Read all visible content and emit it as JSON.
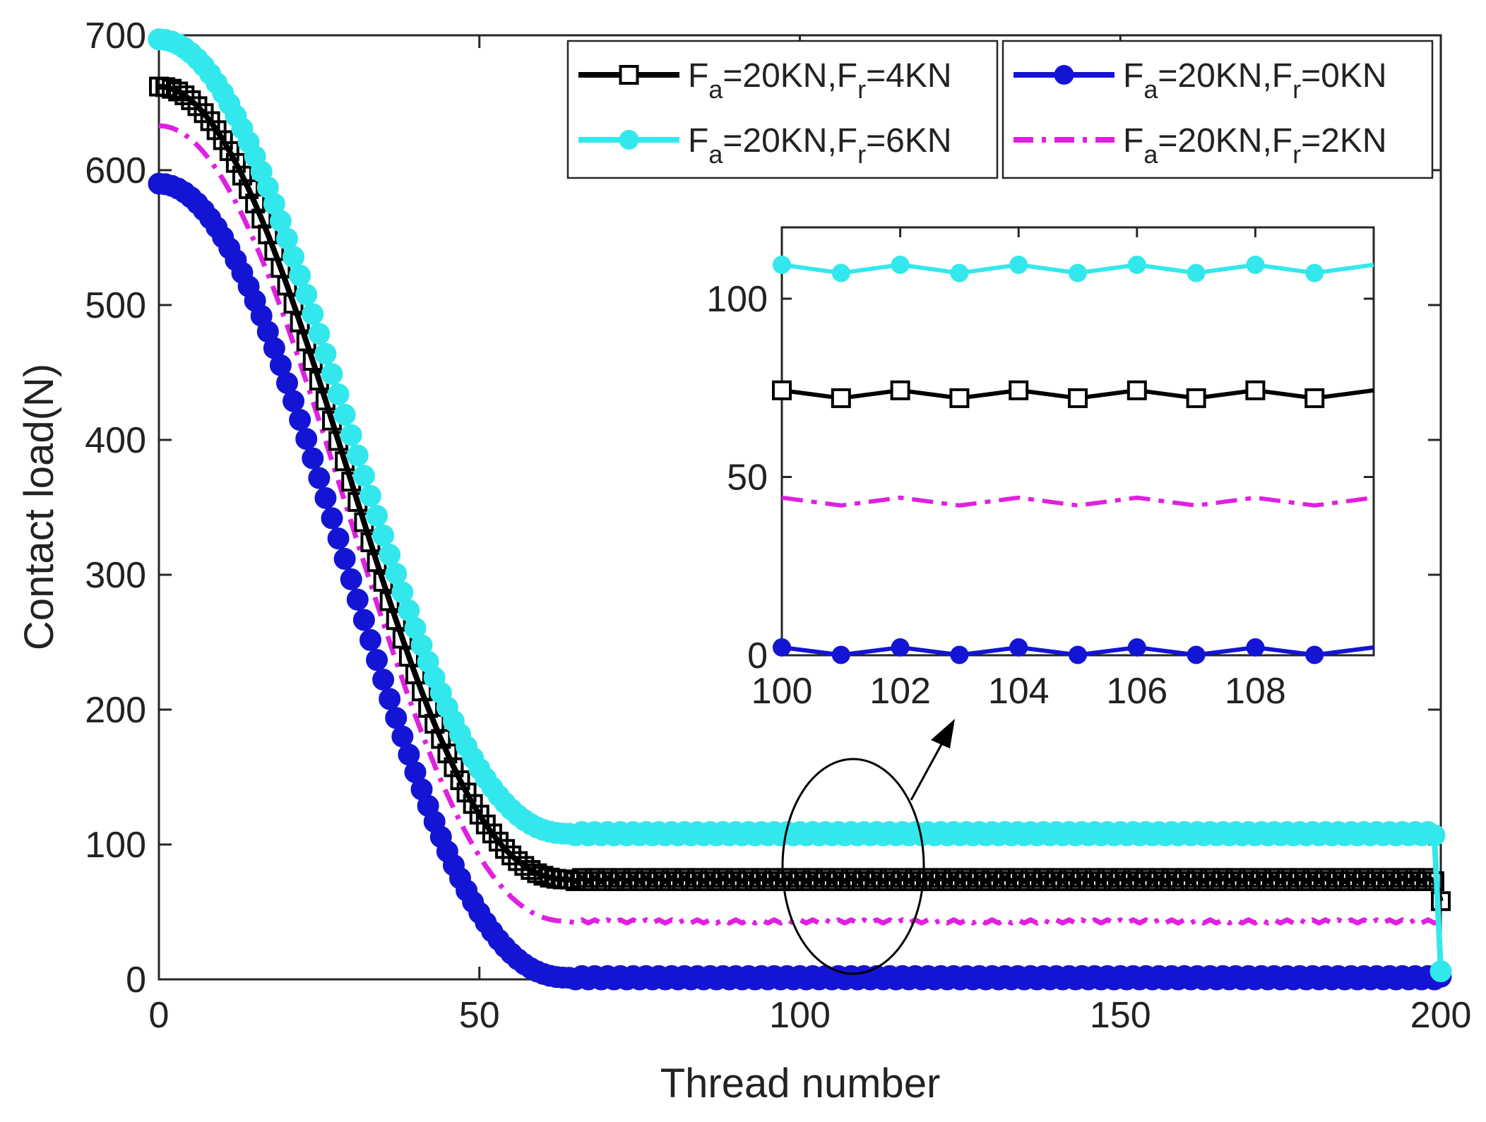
{
  "chart_data": {
    "type": "line",
    "title": "",
    "xlabel": "Thread number",
    "ylabel": "Contact load(N)",
    "xlim": [
      0,
      200
    ],
    "ylim": [
      0,
      700
    ],
    "xticks": [
      "0",
      "50",
      "100",
      "150",
      "200"
    ],
    "yticks": [
      "0",
      "100",
      "200",
      "300",
      "400",
      "500",
      "600",
      "700"
    ],
    "legend_position": "top-right",
    "series": [
      {
        "name": "Fa=20KN,Fr=4KN",
        "legend_main": "F",
        "legend_parts": [
          {
            "t": "F"
          },
          {
            "t": "a",
            "sub": true
          },
          {
            "t": "=20KN,F"
          },
          {
            "t": "r",
            "sub": true
          },
          {
            "t": "=4KN"
          }
        ],
        "color": "#000000",
        "marker": "square-open",
        "line_style": "solid",
        "start": 662,
        "plateau": 74,
        "amplitude": 1.2,
        "knee": 64,
        "end_value": 58
      },
      {
        "name": "Fa=20KN,Fr=6KN",
        "legend_parts": [
          {
            "t": "F"
          },
          {
            "t": "a",
            "sub": true
          },
          {
            "t": "=20KN,F"
          },
          {
            "t": "r",
            "sub": true
          },
          {
            "t": "=6KN"
          }
        ],
        "color": "#33e8ec",
        "marker": "circle-filled",
        "line_style": "solid",
        "start": 697,
        "plateau": 108,
        "amplitude": 1.2,
        "knee": 64,
        "end_value": 6
      },
      {
        "name": "Fa=20KN,Fr=0KN",
        "legend_parts": [
          {
            "t": "F"
          },
          {
            "t": "a",
            "sub": true
          },
          {
            "t": "=20KN,F"
          },
          {
            "t": "r",
            "sub": true
          },
          {
            "t": "=0KN"
          }
        ],
        "color": "#1414d4",
        "marker": "circle-filled",
        "line_style": "solid",
        "start": 590,
        "plateau": 1.2,
        "amplitude": 1.2,
        "knee": 64,
        "end_value": 2
      },
      {
        "name": "Fa=20KN,Fr=2KN",
        "legend_parts": [
          {
            "t": "F"
          },
          {
            "t": "a",
            "sub": true
          },
          {
            "t": "=20KN,F"
          },
          {
            "t": "r",
            "sub": true
          },
          {
            "t": "=2KN"
          }
        ],
        "color": "#e020e0",
        "marker": "none",
        "line_style": "dashdot",
        "start": 633,
        "plateau": 43,
        "amplitude": 1.2,
        "knee": 64,
        "end_value": 43
      }
    ],
    "inset": {
      "xlim": [
        100,
        110
      ],
      "ylim": [
        0,
        120
      ],
      "xticks": [
        "100",
        "102",
        "104",
        "106",
        "108"
      ],
      "yticks": [
        "0",
        "50",
        "100"
      ],
      "x": [
        100,
        101,
        102,
        103,
        104,
        105,
        106,
        107,
        108,
        109,
        110
      ],
      "series": [
        {
          "name": "Fa=20KN,Fr=6KN",
          "values": [
            109.5,
            107.2,
            109.5,
            107.2,
            109.5,
            107.2,
            109.5,
            107.2,
            109.5,
            107.2,
            109.5
          ]
        },
        {
          "name": "Fa=20KN,Fr=4KN",
          "values": [
            74.3,
            72.1,
            74.3,
            72.1,
            74.3,
            72.1,
            74.3,
            72.1,
            74.3,
            72.1,
            74.3
          ]
        },
        {
          "name": "Fa=20KN,Fr=2KN",
          "values": [
            44.2,
            42.0,
            44.2,
            42.0,
            44.2,
            42.0,
            44.2,
            42.0,
            44.2,
            42.0,
            44.2
          ]
        },
        {
          "name": "Fa=20KN,Fr=0KN",
          "values": [
            2.2,
            0.1,
            2.2,
            0.1,
            2.2,
            0.1,
            2.2,
            0.1,
            2.2,
            0.1,
            2.2
          ]
        }
      ]
    },
    "annotation": "ellipse around threads 100-110 with arrow pointing to zoomed inset"
  }
}
